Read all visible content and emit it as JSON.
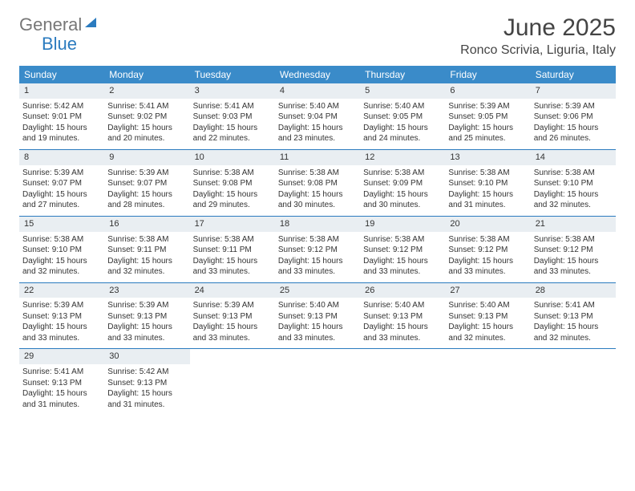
{
  "brand": {
    "part1": "General",
    "part2": "Blue"
  },
  "title": "June 2025",
  "location": "Ronco Scrivia, Liguria, Italy",
  "colors": {
    "header_bg": "#3a8bc9",
    "row_border": "#2b7bbf",
    "daynum_bg": "#e9eef2",
    "text": "#333333",
    "page_bg": "#ffffff"
  },
  "weekdays": [
    "Sunday",
    "Monday",
    "Tuesday",
    "Wednesday",
    "Thursday",
    "Friday",
    "Saturday"
  ],
  "weeks": [
    [
      {
        "day": "1",
        "sunrise": "Sunrise: 5:42 AM",
        "sunset": "Sunset: 9:01 PM",
        "day1": "Daylight: 15 hours",
        "day2": "and 19 minutes."
      },
      {
        "day": "2",
        "sunrise": "Sunrise: 5:41 AM",
        "sunset": "Sunset: 9:02 PM",
        "day1": "Daylight: 15 hours",
        "day2": "and 20 minutes."
      },
      {
        "day": "3",
        "sunrise": "Sunrise: 5:41 AM",
        "sunset": "Sunset: 9:03 PM",
        "day1": "Daylight: 15 hours",
        "day2": "and 22 minutes."
      },
      {
        "day": "4",
        "sunrise": "Sunrise: 5:40 AM",
        "sunset": "Sunset: 9:04 PM",
        "day1": "Daylight: 15 hours",
        "day2": "and 23 minutes."
      },
      {
        "day": "5",
        "sunrise": "Sunrise: 5:40 AM",
        "sunset": "Sunset: 9:05 PM",
        "day1": "Daylight: 15 hours",
        "day2": "and 24 minutes."
      },
      {
        "day": "6",
        "sunrise": "Sunrise: 5:39 AM",
        "sunset": "Sunset: 9:05 PM",
        "day1": "Daylight: 15 hours",
        "day2": "and 25 minutes."
      },
      {
        "day": "7",
        "sunrise": "Sunrise: 5:39 AM",
        "sunset": "Sunset: 9:06 PM",
        "day1": "Daylight: 15 hours",
        "day2": "and 26 minutes."
      }
    ],
    [
      {
        "day": "8",
        "sunrise": "Sunrise: 5:39 AM",
        "sunset": "Sunset: 9:07 PM",
        "day1": "Daylight: 15 hours",
        "day2": "and 27 minutes."
      },
      {
        "day": "9",
        "sunrise": "Sunrise: 5:39 AM",
        "sunset": "Sunset: 9:07 PM",
        "day1": "Daylight: 15 hours",
        "day2": "and 28 minutes."
      },
      {
        "day": "10",
        "sunrise": "Sunrise: 5:38 AM",
        "sunset": "Sunset: 9:08 PM",
        "day1": "Daylight: 15 hours",
        "day2": "and 29 minutes."
      },
      {
        "day": "11",
        "sunrise": "Sunrise: 5:38 AM",
        "sunset": "Sunset: 9:08 PM",
        "day1": "Daylight: 15 hours",
        "day2": "and 30 minutes."
      },
      {
        "day": "12",
        "sunrise": "Sunrise: 5:38 AM",
        "sunset": "Sunset: 9:09 PM",
        "day1": "Daylight: 15 hours",
        "day2": "and 30 minutes."
      },
      {
        "day": "13",
        "sunrise": "Sunrise: 5:38 AM",
        "sunset": "Sunset: 9:10 PM",
        "day1": "Daylight: 15 hours",
        "day2": "and 31 minutes."
      },
      {
        "day": "14",
        "sunrise": "Sunrise: 5:38 AM",
        "sunset": "Sunset: 9:10 PM",
        "day1": "Daylight: 15 hours",
        "day2": "and 32 minutes."
      }
    ],
    [
      {
        "day": "15",
        "sunrise": "Sunrise: 5:38 AM",
        "sunset": "Sunset: 9:10 PM",
        "day1": "Daylight: 15 hours",
        "day2": "and 32 minutes."
      },
      {
        "day": "16",
        "sunrise": "Sunrise: 5:38 AM",
        "sunset": "Sunset: 9:11 PM",
        "day1": "Daylight: 15 hours",
        "day2": "and 32 minutes."
      },
      {
        "day": "17",
        "sunrise": "Sunrise: 5:38 AM",
        "sunset": "Sunset: 9:11 PM",
        "day1": "Daylight: 15 hours",
        "day2": "and 33 minutes."
      },
      {
        "day": "18",
        "sunrise": "Sunrise: 5:38 AM",
        "sunset": "Sunset: 9:12 PM",
        "day1": "Daylight: 15 hours",
        "day2": "and 33 minutes."
      },
      {
        "day": "19",
        "sunrise": "Sunrise: 5:38 AM",
        "sunset": "Sunset: 9:12 PM",
        "day1": "Daylight: 15 hours",
        "day2": "and 33 minutes."
      },
      {
        "day": "20",
        "sunrise": "Sunrise: 5:38 AM",
        "sunset": "Sunset: 9:12 PM",
        "day1": "Daylight: 15 hours",
        "day2": "and 33 minutes."
      },
      {
        "day": "21",
        "sunrise": "Sunrise: 5:38 AM",
        "sunset": "Sunset: 9:12 PM",
        "day1": "Daylight: 15 hours",
        "day2": "and 33 minutes."
      }
    ],
    [
      {
        "day": "22",
        "sunrise": "Sunrise: 5:39 AM",
        "sunset": "Sunset: 9:13 PM",
        "day1": "Daylight: 15 hours",
        "day2": "and 33 minutes."
      },
      {
        "day": "23",
        "sunrise": "Sunrise: 5:39 AM",
        "sunset": "Sunset: 9:13 PM",
        "day1": "Daylight: 15 hours",
        "day2": "and 33 minutes."
      },
      {
        "day": "24",
        "sunrise": "Sunrise: 5:39 AM",
        "sunset": "Sunset: 9:13 PM",
        "day1": "Daylight: 15 hours",
        "day2": "and 33 minutes."
      },
      {
        "day": "25",
        "sunrise": "Sunrise: 5:40 AM",
        "sunset": "Sunset: 9:13 PM",
        "day1": "Daylight: 15 hours",
        "day2": "and 33 minutes."
      },
      {
        "day": "26",
        "sunrise": "Sunrise: 5:40 AM",
        "sunset": "Sunset: 9:13 PM",
        "day1": "Daylight: 15 hours",
        "day2": "and 33 minutes."
      },
      {
        "day": "27",
        "sunrise": "Sunrise: 5:40 AM",
        "sunset": "Sunset: 9:13 PM",
        "day1": "Daylight: 15 hours",
        "day2": "and 32 minutes."
      },
      {
        "day": "28",
        "sunrise": "Sunrise: 5:41 AM",
        "sunset": "Sunset: 9:13 PM",
        "day1": "Daylight: 15 hours",
        "day2": "and 32 minutes."
      }
    ],
    [
      {
        "day": "29",
        "sunrise": "Sunrise: 5:41 AM",
        "sunset": "Sunset: 9:13 PM",
        "day1": "Daylight: 15 hours",
        "day2": "and 31 minutes."
      },
      {
        "day": "30",
        "sunrise": "Sunrise: 5:42 AM",
        "sunset": "Sunset: 9:13 PM",
        "day1": "Daylight: 15 hours",
        "day2": "and 31 minutes."
      },
      null,
      null,
      null,
      null,
      null
    ]
  ]
}
